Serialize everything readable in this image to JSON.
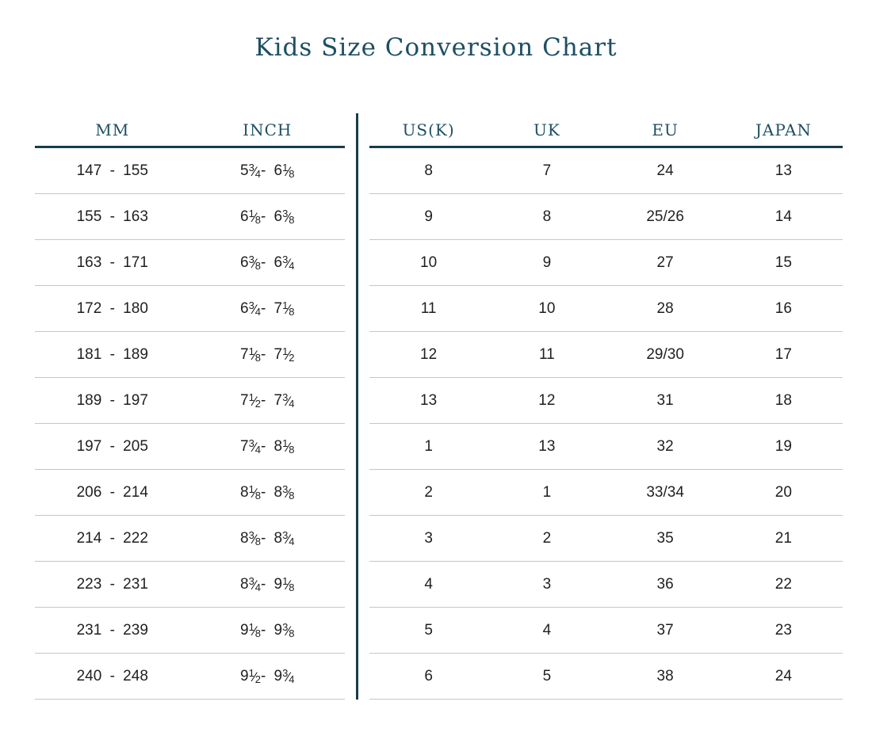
{
  "page": {
    "title": "Kids Size Conversion Chart"
  },
  "colors": {
    "accent_text": "#1d4f63",
    "rule_dark": "#163c4d",
    "row_separator": "#c6c6c6",
    "body_text": "#1f1f1f",
    "background": "#ffffff"
  },
  "chart_data": {
    "type": "table",
    "title": "Kids Size Conversion Chart",
    "layout": "two side-by-side tables separated by a vertical dark rule; thick dark rule under headers; thin gray separators between rows",
    "tables": [
      {
        "name": "foot-length",
        "columns": [
          "MM",
          "INCH"
        ],
        "rows": [
          [
            "147 - 155",
            "5¾ - 6⅛"
          ],
          [
            "155 - 163",
            "6⅛ - 6⅜"
          ],
          [
            "163 - 171",
            "6⅜ - 6¾"
          ],
          [
            "172 - 180",
            "6¾ - 7⅛"
          ],
          [
            "181 - 189",
            "7⅛ - 7½"
          ],
          [
            "189 - 197",
            "7½ - 7¾"
          ],
          [
            "197 - 205",
            "7¾ - 8⅛"
          ],
          [
            "206 - 214",
            "8⅛ - 8⅜"
          ],
          [
            "214 - 222",
            "8⅜ - 8¾"
          ],
          [
            "223 - 231",
            "8¾ - 9⅛"
          ],
          [
            "231 - 239",
            "9⅛ - 9⅜"
          ],
          [
            "240 - 248",
            "9½ - 9¾"
          ]
        ]
      },
      {
        "name": "international-sizes",
        "columns": [
          "US(K)",
          "UK",
          "EU",
          "JAPAN"
        ],
        "rows": [
          [
            "8",
            "7",
            "24",
            "13"
          ],
          [
            "9",
            "8",
            "25/26",
            "14"
          ],
          [
            "10",
            "9",
            "27",
            "15"
          ],
          [
            "11",
            "10",
            "28",
            "16"
          ],
          [
            "12",
            "11",
            "29/30",
            "17"
          ],
          [
            "13",
            "12",
            "31",
            "18"
          ],
          [
            "1",
            "13",
            "32",
            "19"
          ],
          [
            "2",
            "1",
            "33/34",
            "20"
          ],
          [
            "3",
            "2",
            "35",
            "21"
          ],
          [
            "4",
            "3",
            "36",
            "22"
          ],
          [
            "5",
            "4",
            "37",
            "23"
          ],
          [
            "6",
            "5",
            "38",
            "24"
          ]
        ]
      }
    ]
  }
}
